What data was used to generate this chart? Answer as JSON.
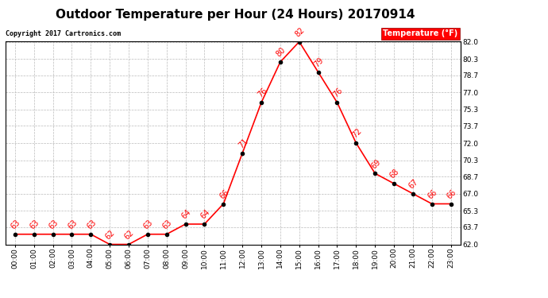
{
  "title": "Outdoor Temperature per Hour (24 Hours) 20170914",
  "copyright": "Copyright 2017 Cartronics.com",
  "legend_label": "Temperature (°F)",
  "hours": [
    0,
    1,
    2,
    3,
    4,
    5,
    6,
    7,
    8,
    9,
    10,
    11,
    12,
    13,
    14,
    15,
    16,
    17,
    18,
    19,
    20,
    21,
    22,
    23
  ],
  "temps": [
    63,
    63,
    63,
    63,
    63,
    62,
    62,
    63,
    63,
    64,
    64,
    66,
    71,
    76,
    80,
    82,
    79,
    76,
    72,
    69,
    68,
    67,
    66,
    66
  ],
  "x_labels": [
    "00:00",
    "01:00",
    "02:00",
    "03:00",
    "04:00",
    "05:00",
    "06:00",
    "07:00",
    "08:00",
    "09:00",
    "10:00",
    "11:00",
    "12:00",
    "13:00",
    "14:00",
    "15:00",
    "16:00",
    "17:00",
    "18:00",
    "19:00",
    "20:00",
    "21:00",
    "22:00",
    "23:00"
  ],
  "ylim": [
    62.0,
    82.0
  ],
  "yticks": [
    62.0,
    63.7,
    65.3,
    67.0,
    68.7,
    70.3,
    72.0,
    73.7,
    75.3,
    77.0,
    78.7,
    80.3,
    82.0
  ],
  "line_color": "red",
  "marker_color": "black",
  "grid_color": "#bbbbbb",
  "bg_color": "white",
  "title_fontsize": 11,
  "label_fontsize": 6.5,
  "annot_fontsize": 7,
  "copyright_fontsize": 6,
  "legend_fontsize": 7
}
